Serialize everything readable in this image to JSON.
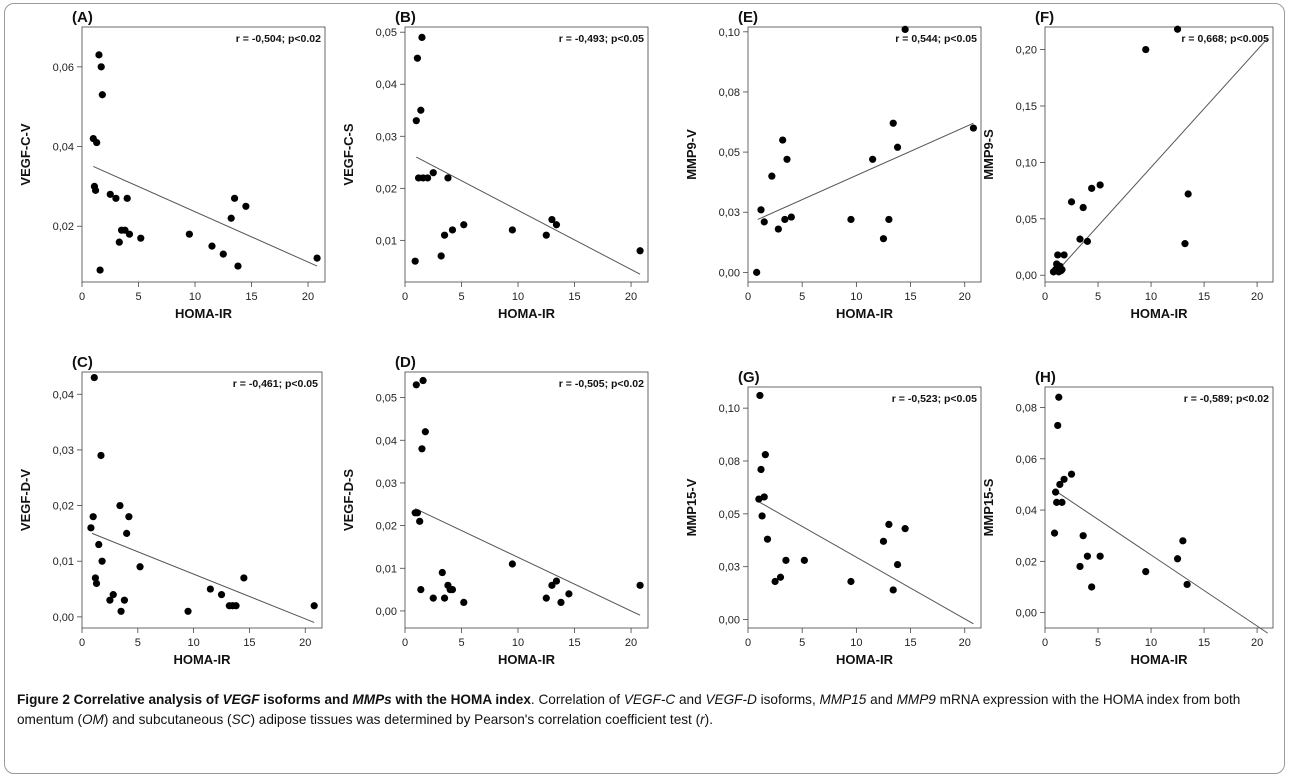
{
  "caption": {
    "title_parts": [
      {
        "t": "Figure 2 Correlative analysis of ",
        "i": false
      },
      {
        "t": "VEGF",
        "i": true
      },
      {
        "t": " isoforms and ",
        "i": false
      },
      {
        "t": "MMPs",
        "i": true
      },
      {
        "t": " with the HOMA index",
        "i": false
      }
    ],
    "body_parts": [
      {
        "t": ". Correlation of ",
        "i": false
      },
      {
        "t": "VEGF-C",
        "i": true
      },
      {
        "t": " and ",
        "i": false
      },
      {
        "t": "VEGF-D",
        "i": true
      },
      {
        "t": " isoforms, ",
        "i": false
      },
      {
        "t": "MMP15",
        "i": true
      },
      {
        "t": " and ",
        "i": false
      },
      {
        "t": "MMP9",
        "i": true
      },
      {
        "t": " mRNA expression with the HOMA index from both omentum (",
        "i": false
      },
      {
        "t": "OM",
        "i": true
      },
      {
        "t": ") and subcutaneous (",
        "i": false
      },
      {
        "t": "SC",
        "i": true
      },
      {
        "t": ") adipose tissues was determined by Pearson's correlation coefficient test (",
        "i": false
      },
      {
        "t": "r",
        "i": true
      },
      {
        "t": ").",
        "i": false
      }
    ]
  },
  "chart_data": [
    {
      "id": "A",
      "panel_label": "(A)",
      "type": "scatter",
      "annotation": "r = -0,504; p<0.02",
      "xlabel": "HOMA-IR",
      "ylabel": "VEGF-C-V",
      "xlim": [
        0,
        21.5
      ],
      "ylim": [
        0.006,
        0.07
      ],
      "xticks": [
        0,
        5,
        10,
        15,
        20
      ],
      "xticklabels": [
        "0",
        "5",
        "10",
        "15",
        "20"
      ],
      "yticks": [
        0.02,
        0.04,
        0.06
      ],
      "yticklabels": [
        "0,02",
        "0,04",
        "0,06"
      ],
      "x": [
        1.0,
        1.1,
        1.2,
        1.3,
        1.5,
        1.6,
        1.7,
        1.8,
        2.5,
        3.0,
        3.3,
        3.5,
        3.8,
        4.0,
        4.2,
        5.2,
        9.5,
        11.5,
        12.5,
        13.2,
        13.5,
        13.8,
        14.5,
        20.8
      ],
      "y": [
        0.042,
        0.03,
        0.029,
        0.041,
        0.063,
        0.009,
        0.06,
        0.053,
        0.028,
        0.027,
        0.016,
        0.019,
        0.019,
        0.027,
        0.018,
        0.017,
        0.018,
        0.015,
        0.013,
        0.022,
        0.027,
        0.01,
        0.025,
        0.012
      ],
      "fit": {
        "x": [
          1.0,
          20.8
        ],
        "y": [
          0.035,
          0.01
        ]
      }
    },
    {
      "id": "B",
      "panel_label": "(B)",
      "type": "scatter",
      "annotation": "r = -0,493; p<0.05",
      "xlabel": "HOMA-IR",
      "ylabel": "VEGF-C-S",
      "xlim": [
        0,
        21.5
      ],
      "ylim": [
        0.002,
        0.051
      ],
      "xticks": [
        0,
        5,
        10,
        15,
        20
      ],
      "xticklabels": [
        "0",
        "5",
        "10",
        "15",
        "20"
      ],
      "yticks": [
        0.01,
        0.02,
        0.03,
        0.04,
        0.05
      ],
      "yticklabels": [
        "0,01",
        "0,02",
        "0,03",
        "0,04",
        "0,05"
      ],
      "x": [
        0.9,
        1.0,
        1.1,
        1.2,
        1.4,
        1.5,
        1.6,
        2.0,
        2.5,
        3.2,
        3.5,
        3.8,
        4.2,
        5.2,
        9.5,
        12.5,
        13.0,
        13.4,
        20.8
      ],
      "y": [
        0.006,
        0.033,
        0.045,
        0.022,
        0.035,
        0.049,
        0.022,
        0.022,
        0.023,
        0.007,
        0.011,
        0.022,
        0.012,
        0.013,
        0.012,
        0.011,
        0.014,
        0.013,
        0.008
      ],
      "fit": {
        "x": [
          1.0,
          20.8
        ],
        "y": [
          0.026,
          0.0035
        ]
      }
    },
    {
      "id": "E",
      "panel_label": "(E)",
      "type": "scatter",
      "annotation": "r = 0,544; p<0.05",
      "xlabel": "HOMA-IR",
      "ylabel": "MMP9-V",
      "xlim": [
        0,
        21.5
      ],
      "ylim": [
        -0.004,
        0.102
      ],
      "xticks": [
        0,
        5,
        10,
        15,
        20
      ],
      "xticklabels": [
        "0",
        "5",
        "10",
        "15",
        "20"
      ],
      "yticks": [
        0.0,
        0.025,
        0.05,
        0.075,
        0.1
      ],
      "yticklabels": [
        "0,00",
        "0,03",
        "0,05",
        "0,08",
        "0,10"
      ],
      "x": [
        0.8,
        1.2,
        1.5,
        2.2,
        2.8,
        3.2,
        3.4,
        3.6,
        4.0,
        9.5,
        11.5,
        12.5,
        13.0,
        13.4,
        13.8,
        14.5,
        20.8
      ],
      "y": [
        0.0,
        0.026,
        0.021,
        0.04,
        0.018,
        0.055,
        0.022,
        0.047,
        0.023,
        0.022,
        0.047,
        0.014,
        0.022,
        0.062,
        0.052,
        0.101,
        0.06
      ],
      "fit": {
        "x": [
          0.9,
          20.8
        ],
        "y": [
          0.022,
          0.062
        ]
      }
    },
    {
      "id": "F",
      "panel_label": "(F)",
      "type": "scatter",
      "annotation": "r = 0,668; p<0.005",
      "xlabel": "HOMA-IR",
      "ylabel": "MMP9-S",
      "xlim": [
        0,
        21.5
      ],
      "ylim": [
        -0.006,
        0.22
      ],
      "xticks": [
        0,
        5,
        10,
        15,
        20
      ],
      "xticklabels": [
        "0",
        "5",
        "10",
        "15",
        "20"
      ],
      "yticks": [
        0.0,
        0.05,
        0.1,
        0.15,
        0.2
      ],
      "yticklabels": [
        "0,00",
        "0,05",
        "0,10",
        "0,15",
        "0,20"
      ],
      "x": [
        0.8,
        1.0,
        1.1,
        1.2,
        1.3,
        1.4,
        1.5,
        1.6,
        1.8,
        2.5,
        3.3,
        3.6,
        4.0,
        4.4,
        5.2,
        9.5,
        12.5,
        13.2,
        13.5
      ],
      "y": [
        0.003,
        0.005,
        0.01,
        0.018,
        0.003,
        0.008,
        0.004,
        0.005,
        0.018,
        0.065,
        0.032,
        0.06,
        0.03,
        0.077,
        0.08,
        0.2,
        0.218,
        0.028,
        0.072
      ],
      "fit": {
        "x": [
          0.8,
          21.0
        ],
        "y": [
          0.0,
          0.21
        ]
      }
    },
    {
      "id": "C",
      "panel_label": "(C)",
      "type": "scatter",
      "annotation": "r = -0,461; p<0.05",
      "xlabel": "HOMA-IR",
      "ylabel": "VEGF-D-V",
      "xlim": [
        0,
        21.5
      ],
      "ylim": [
        -0.002,
        0.044
      ],
      "xticks": [
        0,
        5,
        10,
        15,
        20
      ],
      "xticklabels": [
        "0",
        "5",
        "10",
        "15",
        "20"
      ],
      "yticks": [
        0.0,
        0.01,
        0.02,
        0.03,
        0.04
      ],
      "yticklabels": [
        "0,00",
        "0,01",
        "0,02",
        "0,03",
        "0,04"
      ],
      "x": [
        0.8,
        1.0,
        1.1,
        1.2,
        1.3,
        1.5,
        1.7,
        1.8,
        2.5,
        2.8,
        3.4,
        3.5,
        3.8,
        4.0,
        4.2,
        5.2,
        9.5,
        11.5,
        12.5,
        13.2,
        13.5,
        13.8,
        14.5,
        20.8
      ],
      "y": [
        0.016,
        0.018,
        0.043,
        0.007,
        0.006,
        0.013,
        0.029,
        0.01,
        0.003,
        0.004,
        0.02,
        0.001,
        0.003,
        0.015,
        0.018,
        0.009,
        0.001,
        0.005,
        0.004,
        0.002,
        0.002,
        0.002,
        0.007,
        0.002
      ],
      "fit": {
        "x": [
          0.9,
          20.8
        ],
        "y": [
          0.015,
          -0.001
        ]
      }
    },
    {
      "id": "D",
      "panel_label": "(D)",
      "type": "scatter",
      "annotation": "r = -0,505; p<0.02",
      "xlabel": "HOMA-IR",
      "ylabel": "VEGF-D-S",
      "xlim": [
        0,
        21.5
      ],
      "ylim": [
        -0.004,
        0.056
      ],
      "xticks": [
        0,
        5,
        10,
        15,
        20
      ],
      "xticklabels": [
        "0",
        "5",
        "10",
        "15",
        "20"
      ],
      "yticks": [
        0.0,
        0.01,
        0.02,
        0.03,
        0.04,
        0.05
      ],
      "yticklabels": [
        "0,00",
        "0,01",
        "0,02",
        "0,03",
        "0,04",
        "0,05"
      ],
      "x": [
        0.9,
        1.0,
        1.1,
        1.3,
        1.4,
        1.5,
        1.6,
        1.8,
        2.5,
        3.3,
        3.5,
        3.8,
        4.0,
        4.2,
        5.2,
        9.5,
        12.5,
        13.0,
        13.4,
        13.8,
        14.5,
        20.8
      ],
      "y": [
        0.023,
        0.053,
        0.023,
        0.021,
        0.005,
        0.038,
        0.054,
        0.042,
        0.003,
        0.009,
        0.003,
        0.006,
        0.005,
        0.005,
        0.002,
        0.011,
        0.003,
        0.006,
        0.007,
        0.002,
        0.004,
        0.006
      ],
      "fit": {
        "x": [
          0.9,
          20.8
        ],
        "y": [
          0.024,
          -0.001
        ]
      }
    },
    {
      "id": "G",
      "panel_label": "(G)",
      "type": "scatter",
      "annotation": "r = -0,523; p<0.05",
      "xlabel": "HOMA-IR",
      "ylabel": "MMP15-V",
      "xlim": [
        0,
        21.5
      ],
      "ylim": [
        -0.004,
        0.11
      ],
      "xticks": [
        0,
        5,
        10,
        15,
        20
      ],
      "xticklabels": [
        "0",
        "5",
        "10",
        "15",
        "20"
      ],
      "yticks": [
        0.0,
        0.025,
        0.05,
        0.075,
        0.1
      ],
      "yticklabels": [
        "0,00",
        "0,03",
        "0,05",
        "0,08",
        "0,10"
      ],
      "x": [
        1.0,
        1.1,
        1.2,
        1.3,
        1.5,
        1.6,
        1.8,
        2.5,
        3.0,
        3.5,
        5.2,
        9.5,
        12.5,
        13.0,
        13.4,
        13.8,
        14.5
      ],
      "y": [
        0.057,
        0.106,
        0.071,
        0.049,
        0.058,
        0.078,
        0.038,
        0.018,
        0.02,
        0.028,
        0.028,
        0.018,
        0.037,
        0.045,
        0.014,
        0.026,
        0.043
      ],
      "fit": {
        "x": [
          0.9,
          20.8
        ],
        "y": [
          0.056,
          -0.002
        ]
      }
    },
    {
      "id": "H",
      "panel_label": "(H)",
      "type": "scatter",
      "annotation": "r = -0,589; p<0.02",
      "xlabel": "HOMA-IR",
      "ylabel": "MMP15-S",
      "xlim": [
        0,
        21.5
      ],
      "ylim": [
        -0.006,
        0.088
      ],
      "xticks": [
        0,
        5,
        10,
        15,
        20
      ],
      "xticklabels": [
        "0",
        "5",
        "10",
        "15",
        "20"
      ],
      "yticks": [
        0.0,
        0.02,
        0.04,
        0.06,
        0.08
      ],
      "yticklabels": [
        "0,00",
        "0,02",
        "0,04",
        "0,06",
        "0,08"
      ],
      "x": [
        0.9,
        1.0,
        1.1,
        1.2,
        1.3,
        1.4,
        1.6,
        1.8,
        2.5,
        3.3,
        3.6,
        4.0,
        4.4,
        5.2,
        9.5,
        12.5,
        13.0,
        13.4
      ],
      "y": [
        0.031,
        0.047,
        0.043,
        0.073,
        0.084,
        0.05,
        0.043,
        0.052,
        0.054,
        0.018,
        0.03,
        0.022,
        0.01,
        0.022,
        0.016,
        0.021,
        0.028,
        0.011
      ],
      "fit": {
        "x": [
          0.8,
          21.0
        ],
        "y": [
          0.048,
          -0.008
        ]
      }
    }
  ]
}
